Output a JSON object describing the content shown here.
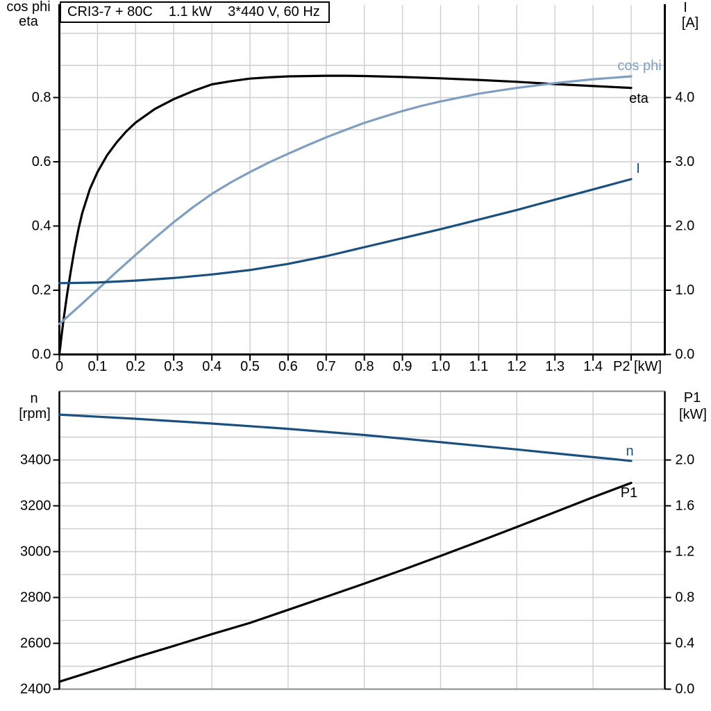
{
  "title_box": {
    "parts": [
      "CRI3-7 + 80C",
      "1.1 kW",
      "3*440 V, 60 Hz"
    ]
  },
  "colors": {
    "black": "#000000",
    "light_blue": "#7e9fc1",
    "dark_blue": "#1a507f",
    "grid": "#ccced2",
    "frame_gray": "#87898d"
  },
  "labels": {
    "top_left_line1": "cos phi",
    "top_left_line2": "eta",
    "top_right_line1": "I",
    "top_right_line2": "[A]",
    "x_axis_title": "P2 [kW]",
    "bottom_left_line1": "n",
    "bottom_left_line2": "[rpm]",
    "bottom_right_line1": "P1",
    "bottom_right_line2": "[kW]",
    "curve_labels": {
      "cos_phi": "cos phi",
      "eta": "eta",
      "current": "I",
      "speed": "n",
      "power_in": "P1"
    }
  },
  "chart_data": [
    {
      "type": "line",
      "id": "motor-top",
      "title": "CRI3-7 + 80C  1.1 kW  3*440 V, 60 Hz",
      "x_axis": {
        "label": "P2 [kW]",
        "min": 0,
        "max": 1.588,
        "tick_values": [
          0,
          0.1,
          0.2,
          0.3,
          0.4,
          0.5,
          0.6,
          0.7,
          0.8,
          0.9,
          1.0,
          1.1,
          1.2,
          1.3,
          1.4,
          1.5
        ],
        "tick_labels": [
          "0",
          "0.1",
          "0.2",
          "0.3",
          "0.4",
          "0.5",
          "0.6",
          "0.7",
          "0.8",
          "0.9",
          "1.0",
          "1.1",
          "1.2",
          "1.3",
          "1.4",
          ""
        ],
        "grid_values": [
          0.1,
          0.2,
          0.3,
          0.4,
          0.5,
          0.6,
          0.7,
          0.8,
          0.9,
          1.0,
          1.1,
          1.2,
          1.3,
          1.4,
          1.5
        ]
      },
      "left_axis": {
        "label": "cos phi / eta",
        "min": 0,
        "max": 1.085,
        "tick_values": [
          0.0,
          0.2,
          0.4,
          0.6,
          0.8
        ],
        "tick_labels": [
          "0.0",
          "0.2",
          "0.4",
          "0.6",
          "0.8"
        ],
        "grid_values": [
          0.1,
          0.2,
          0.3,
          0.4,
          0.5,
          0.6,
          0.7,
          0.8,
          0.9,
          1.0
        ]
      },
      "right_axis": {
        "label": "I [A]",
        "min": 0,
        "max": 5.43,
        "tick_values": [
          0.0,
          1.0,
          2.0,
          3.0,
          4.0
        ],
        "tick_labels": [
          "0.0",
          "1.0",
          "2.0",
          "3.0",
          "4.0"
        ]
      },
      "series": [
        {
          "name": "eta",
          "axis": "left",
          "color": "black",
          "points": [
            [
              0,
              0
            ],
            [
              0.005,
              0.05
            ],
            [
              0.01,
              0.1
            ],
            [
              0.02,
              0.185
            ],
            [
              0.03,
              0.26
            ],
            [
              0.04,
              0.33
            ],
            [
              0.05,
              0.39
            ],
            [
              0.06,
              0.44
            ],
            [
              0.08,
              0.515
            ],
            [
              0.1,
              0.568
            ],
            [
              0.125,
              0.62
            ],
            [
              0.15,
              0.66
            ],
            [
              0.175,
              0.694
            ],
            [
              0.2,
              0.722
            ],
            [
              0.25,
              0.764
            ],
            [
              0.3,
              0.795
            ],
            [
              0.35,
              0.82
            ],
            [
              0.4,
              0.841
            ],
            [
              0.45,
              0.851
            ],
            [
              0.5,
              0.859
            ],
            [
              0.55,
              0.863
            ],
            [
              0.6,
              0.866
            ],
            [
              0.7,
              0.868
            ],
            [
              0.75,
              0.868
            ],
            [
              0.8,
              0.867
            ],
            [
              0.9,
              0.864
            ],
            [
              1.0,
              0.86
            ],
            [
              1.1,
              0.855
            ],
            [
              1.2,
              0.849
            ],
            [
              1.3,
              0.842
            ],
            [
              1.4,
              0.836
            ],
            [
              1.5,
              0.83
            ]
          ]
        },
        {
          "name": "cos phi",
          "axis": "left",
          "color": "light_blue",
          "points": [
            [
              0,
              0.095
            ],
            [
              0.05,
              0.148
            ],
            [
              0.1,
              0.202
            ],
            [
              0.15,
              0.257
            ],
            [
              0.2,
              0.31
            ],
            [
              0.25,
              0.362
            ],
            [
              0.3,
              0.412
            ],
            [
              0.35,
              0.458
            ],
            [
              0.4,
              0.5
            ],
            [
              0.45,
              0.536
            ],
            [
              0.5,
              0.568
            ],
            [
              0.55,
              0.598
            ],
            [
              0.6,
              0.625
            ],
            [
              0.65,
              0.651
            ],
            [
              0.7,
              0.676
            ],
            [
              0.75,
              0.699
            ],
            [
              0.8,
              0.721
            ],
            [
              0.85,
              0.74
            ],
            [
              0.9,
              0.758
            ],
            [
              0.95,
              0.774
            ],
            [
              1.0,
              0.788
            ],
            [
              1.1,
              0.812
            ],
            [
              1.2,
              0.83
            ],
            [
              1.3,
              0.845
            ],
            [
              1.4,
              0.857
            ],
            [
              1.5,
              0.866
            ]
          ]
        },
        {
          "name": "I",
          "axis": "right",
          "color": "dark_blue",
          "points": [
            [
              0,
              1.11
            ],
            [
              0.1,
              1.12
            ],
            [
              0.2,
              1.15
            ],
            [
              0.3,
              1.19
            ],
            [
              0.4,
              1.245
            ],
            [
              0.5,
              1.315
            ],
            [
              0.6,
              1.41
            ],
            [
              0.7,
              1.53
            ],
            [
              0.8,
              1.67
            ],
            [
              0.9,
              1.81
            ],
            [
              1.0,
              1.95
            ],
            [
              1.1,
              2.1
            ],
            [
              1.2,
              2.25
            ],
            [
              1.3,
              2.41
            ],
            [
              1.4,
              2.57
            ],
            [
              1.5,
              2.73
            ]
          ]
        }
      ]
    },
    {
      "type": "line",
      "id": "motor-bottom",
      "x_axis": {
        "label": "",
        "min": 0,
        "max": 1.588,
        "tick_values": [],
        "tick_labels": [],
        "grid_values": [
          0.2,
          0.4,
          0.6,
          0.8,
          1.0,
          1.2,
          1.4
        ]
      },
      "left_axis": {
        "label": "n [rpm]",
        "min": 2400,
        "max": 3700,
        "tick_values": [
          2400,
          2600,
          2800,
          3000,
          3200,
          3400
        ],
        "tick_labels": [
          "2400",
          "2600",
          "2800",
          "3000",
          "3200",
          "3400"
        ],
        "grid_values": [
          2500,
          2600,
          2700,
          2800,
          2900,
          3000,
          3100,
          3200,
          3300,
          3400,
          3500,
          3600
        ]
      },
      "right_axis": {
        "label": "P1 [kW]",
        "min": 0,
        "max": 2.6,
        "tick_values": [
          0.0,
          0.4,
          0.8,
          1.2,
          1.6,
          2.0
        ],
        "tick_labels": [
          "0.0",
          "0.4",
          "0.8",
          "1.2",
          "1.6",
          "2.0"
        ]
      },
      "series": [
        {
          "name": "n",
          "axis": "left",
          "color": "dark_blue",
          "points": [
            [
              0,
              3598
            ],
            [
              0.2,
              3580
            ],
            [
              0.4,
              3559
            ],
            [
              0.6,
              3536
            ],
            [
              0.8,
              3509
            ],
            [
              1.0,
              3478
            ],
            [
              1.2,
              3446
            ],
            [
              1.35,
              3421
            ],
            [
              1.5,
              3396
            ]
          ]
        },
        {
          "name": "P1",
          "axis": "right",
          "color": "black",
          "points": [
            [
              0,
              0.065
            ],
            [
              0.1,
              0.17
            ],
            [
              0.2,
              0.277
            ],
            [
              0.3,
              0.377
            ],
            [
              0.4,
              0.48
            ],
            [
              0.5,
              0.578
            ],
            [
              0.6,
              0.692
            ],
            [
              0.7,
              0.806
            ],
            [
              0.8,
              0.921
            ],
            [
              0.9,
              1.04
            ],
            [
              1.0,
              1.163
            ],
            [
              1.1,
              1.288
            ],
            [
              1.2,
              1.415
            ],
            [
              1.3,
              1.545
            ],
            [
              1.4,
              1.675
            ],
            [
              1.5,
              1.8
            ]
          ]
        }
      ]
    }
  ]
}
